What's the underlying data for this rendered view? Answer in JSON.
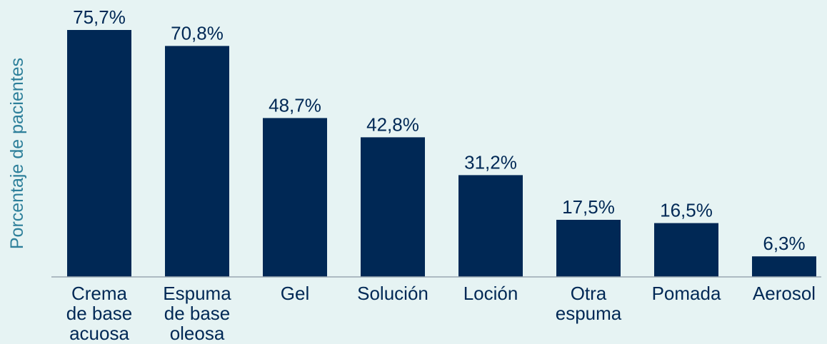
{
  "chart_data": {
    "type": "bar",
    "ylabel": "Porcentaje de pacientes",
    "xlabel": "",
    "ylim": [
      0,
      75.7
    ],
    "grid": false,
    "categories": [
      [
        "Crema",
        "de base",
        "acuosa"
      ],
      [
        "Espuma",
        "de base",
        "oleosa"
      ],
      [
        "Gel"
      ],
      [
        "Solución"
      ],
      [
        "Loción"
      ],
      [
        "Otra",
        "espuma"
      ],
      [
        "Pomada"
      ],
      [
        "Aerosol"
      ]
    ],
    "values": [
      75.7,
      70.8,
      48.7,
      42.8,
      31.2,
      17.5,
      16.5,
      6.3
    ],
    "value_labels": [
      "75,7%",
      "70,8%",
      "48,7%",
      "42,8%",
      "31,2%",
      "17,5%",
      "16,5%",
      "6,3%"
    ],
    "colors": {
      "bar": "#002855",
      "background": "#e6f3f3",
      "axis_label": "#2d7f9a"
    }
  }
}
